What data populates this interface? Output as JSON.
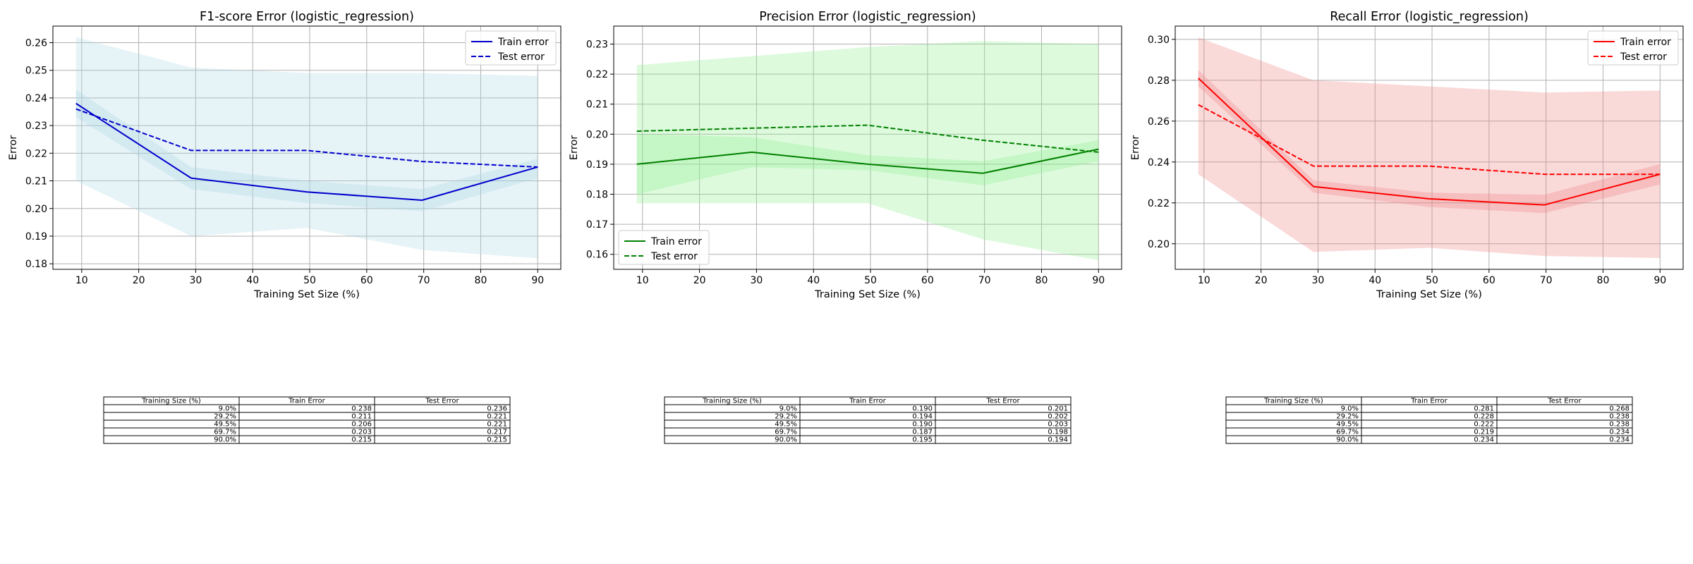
{
  "chart_data": [
    {
      "type": "line",
      "title": "F1-score Error (logistic_regression)",
      "xlabel": "Training Set Size (%)",
      "ylabel": "Error",
      "xlim": [
        4.95,
        94.05
      ],
      "ylim": [
        0.178,
        0.266
      ],
      "xticks": [
        10,
        20,
        30,
        40,
        50,
        60,
        70,
        80,
        90
      ],
      "yticks": [
        0.18,
        0.19,
        0.2,
        0.21,
        0.22,
        0.23,
        0.24,
        0.25,
        0.26
      ],
      "grid": true,
      "legend_position": "upper right",
      "color": "#0000cc",
      "band_color": "#add8e6",
      "x": [
        9.0,
        29.2,
        49.5,
        69.7,
        90.0
      ],
      "series": [
        {
          "name": "Train error",
          "style": "solid",
          "values": [
            0.238,
            0.211,
            0.206,
            0.203,
            0.215
          ],
          "band_lower": [
            0.233,
            0.207,
            0.202,
            0.199,
            0.211
          ],
          "band_upper": [
            0.243,
            0.215,
            0.21,
            0.207,
            0.218
          ]
        },
        {
          "name": "Test error",
          "style": "dashed",
          "values": [
            0.236,
            0.221,
            0.221,
            0.217,
            0.215
          ],
          "band_lower": [
            0.21,
            0.19,
            0.193,
            0.185,
            0.182
          ],
          "band_upper": [
            0.262,
            0.251,
            0.249,
            0.249,
            0.248
          ]
        }
      ],
      "table": {
        "columns": [
          "Training Size (%)",
          "Train Error",
          "Test Error"
        ],
        "rows": [
          [
            "9.0%",
            "0.238",
            "0.236"
          ],
          [
            "29.2%",
            "0.211",
            "0.221"
          ],
          [
            "49.5%",
            "0.206",
            "0.221"
          ],
          [
            "69.7%",
            "0.203",
            "0.217"
          ],
          [
            "90.0%",
            "0.215",
            "0.215"
          ]
        ]
      }
    },
    {
      "type": "line",
      "title": "Precision Error (logistic_regression)",
      "xlabel": "Training Set Size (%)",
      "ylabel": "Error",
      "xlim": [
        4.95,
        94.05
      ],
      "ylim": [
        0.155,
        0.236
      ],
      "xticks": [
        10,
        20,
        30,
        40,
        50,
        60,
        70,
        80,
        90
      ],
      "yticks": [
        0.16,
        0.17,
        0.18,
        0.19,
        0.2,
        0.21,
        0.22,
        0.23
      ],
      "grid": true,
      "legend_position": "lower left",
      "color": "#008000",
      "band_color": "#90ee90",
      "x": [
        9.0,
        29.2,
        49.5,
        69.7,
        90.0
      ],
      "series": [
        {
          "name": "Train error",
          "style": "solid",
          "values": [
            0.19,
            0.194,
            0.19,
            0.187,
            0.195
          ],
          "band_lower": [
            0.18,
            0.189,
            0.188,
            0.183,
            0.191
          ],
          "band_upper": [
            0.2,
            0.199,
            0.193,
            0.191,
            0.198
          ]
        },
        {
          "name": "Test error",
          "style": "dashed",
          "values": [
            0.201,
            0.202,
            0.203,
            0.198,
            0.194
          ],
          "band_lower": [
            0.177,
            0.177,
            0.177,
            0.165,
            0.158
          ],
          "band_upper": [
            0.223,
            0.226,
            0.229,
            0.231,
            0.23
          ]
        }
      ],
      "table": {
        "columns": [
          "Training Size (%)",
          "Train Error",
          "Test Error"
        ],
        "rows": [
          [
            "9.0%",
            "0.190",
            "0.201"
          ],
          [
            "29.2%",
            "0.194",
            "0.202"
          ],
          [
            "49.5%",
            "0.190",
            "0.203"
          ],
          [
            "69.7%",
            "0.187",
            "0.198"
          ],
          [
            "90.0%",
            "0.195",
            "0.194"
          ]
        ]
      }
    },
    {
      "type": "line",
      "title": "Recall Error (logistic_regression)",
      "xlabel": "Training Set Size (%)",
      "ylabel": "Error",
      "xlim": [
        4.95,
        94.05
      ],
      "ylim": [
        0.1875,
        0.3065
      ],
      "xticks": [
        10,
        20,
        30,
        40,
        50,
        60,
        70,
        80,
        90
      ],
      "yticks": [
        0.2,
        0.22,
        0.24,
        0.26,
        0.28,
        0.3
      ],
      "grid": true,
      "legend_position": "upper right",
      "color": "#ff0000",
      "band_color": "#f08080",
      "x": [
        9.0,
        29.2,
        49.5,
        69.7,
        90.0
      ],
      "series": [
        {
          "name": "Train error",
          "style": "solid",
          "values": [
            0.281,
            0.228,
            0.222,
            0.219,
            0.234
          ],
          "band_lower": [
            0.277,
            0.225,
            0.218,
            0.215,
            0.229
          ],
          "band_upper": [
            0.285,
            0.231,
            0.225,
            0.224,
            0.239
          ]
        },
        {
          "name": "Test error",
          "style": "dashed",
          "values": [
            0.268,
            0.238,
            0.238,
            0.234,
            0.234
          ],
          "band_lower": [
            0.234,
            0.196,
            0.198,
            0.194,
            0.193
          ],
          "band_upper": [
            0.301,
            0.28,
            0.277,
            0.274,
            0.275
          ]
        }
      ],
      "table": {
        "columns": [
          "Training Size (%)",
          "Train Error",
          "Test Error"
        ],
        "rows": [
          [
            "9.0%",
            "0.281",
            "0.268"
          ],
          [
            "29.2%",
            "0.228",
            "0.238"
          ],
          [
            "49.5%",
            "0.222",
            "0.238"
          ],
          [
            "69.7%",
            "0.219",
            "0.234"
          ],
          [
            "90.0%",
            "0.234",
            "0.234"
          ]
        ]
      }
    }
  ]
}
